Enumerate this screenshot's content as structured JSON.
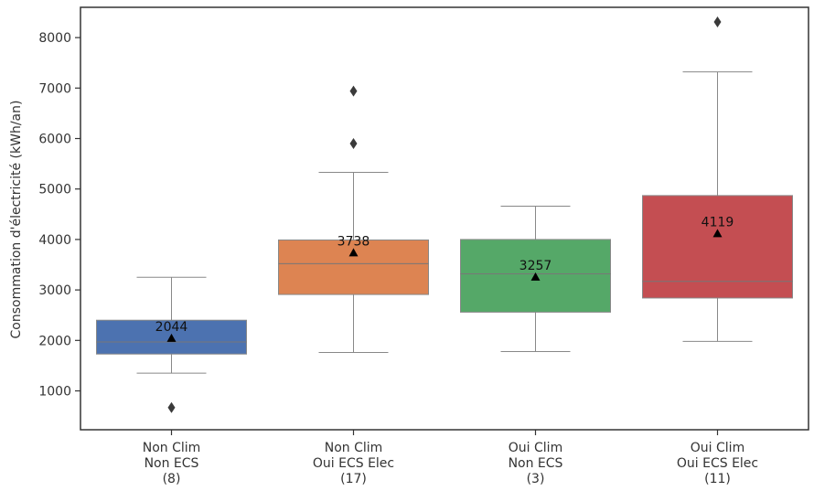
{
  "chart_data": {
    "type": "box",
    "title": "",
    "xlabel": "",
    "ylabel": "Consommation d'électricité (kWh/an)",
    "ylim": [
      230,
      8600
    ],
    "yticks": [
      1000,
      2000,
      3000,
      4000,
      5000,
      6000,
      7000,
      8000
    ],
    "grid": false,
    "categories": [
      {
        "lines": [
          "Non Clim",
          "Non ECS",
          "(8)"
        ],
        "color": "#4c72b0",
        "whisker_low": 1350,
        "q1": 1730,
        "median": 1970,
        "q3": 2400,
        "whisker_high": 3250,
        "mean": 2044,
        "mean_label": "2044",
        "outliers": [
          670
        ]
      },
      {
        "lines": [
          "Non Clim",
          "Oui ECS Elec",
          "(17)"
        ],
        "color": "#dd8452",
        "whisker_low": 1760,
        "q1": 2910,
        "median": 3520,
        "q3": 3990,
        "whisker_high": 5330,
        "mean": 3738,
        "mean_label": "3738",
        "outliers": [
          5900,
          6940
        ]
      },
      {
        "lines": [
          "Oui Clim",
          "Non ECS",
          "(3)"
        ],
        "color": "#55a868",
        "whisker_low": 1780,
        "q1": 2560,
        "median": 3320,
        "q3": 4000,
        "whisker_high": 4660,
        "mean": 3257,
        "mean_label": "3257",
        "outliers": []
      },
      {
        "lines": [
          "Oui Clim",
          "Oui ECS Elec",
          "(11)"
        ],
        "color": "#c44e52",
        "whisker_low": 1980,
        "q1": 2840,
        "median": 3170,
        "q3": 4870,
        "whisker_high": 7320,
        "mean": 4119,
        "mean_label": "4119",
        "outliers": [
          8310
        ]
      }
    ]
  }
}
